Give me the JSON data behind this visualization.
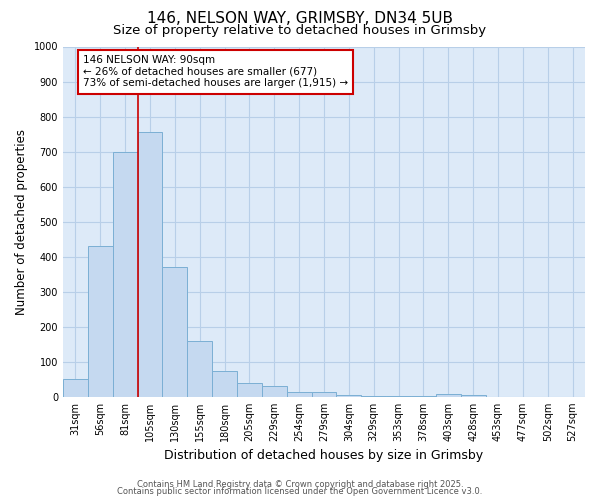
{
  "title": "146, NELSON WAY, GRIMSBY, DN34 5UB",
  "subtitle": "Size of property relative to detached houses in Grimsby",
  "xlabel": "Distribution of detached houses by size in Grimsby",
  "ylabel": "Number of detached properties",
  "categories": [
    "31sqm",
    "56sqm",
    "81sqm",
    "105sqm",
    "130sqm",
    "155sqm",
    "180sqm",
    "205sqm",
    "229sqm",
    "254sqm",
    "279sqm",
    "304sqm",
    "329sqm",
    "353sqm",
    "378sqm",
    "403sqm",
    "428sqm",
    "453sqm",
    "477sqm",
    "502sqm",
    "527sqm"
  ],
  "values": [
    50,
    430,
    700,
    755,
    370,
    160,
    75,
    38,
    30,
    15,
    15,
    5,
    3,
    2,
    1,
    7,
    4,
    0,
    0,
    0,
    0
  ],
  "bar_color": "#c5d9f0",
  "bar_edge_color": "#7bafd4",
  "red_line_index": 2,
  "annotation_line1": "146 NELSON WAY: 90sqm",
  "annotation_line2": "← 26% of detached houses are smaller (677)",
  "annotation_line3": "73% of semi-detached houses are larger (1,915) →",
  "annotation_box_facecolor": "#ffffff",
  "annotation_box_edgecolor": "#cc0000",
  "red_line_color": "#cc0000",
  "ylim": [
    0,
    1000
  ],
  "yticks": [
    0,
    100,
    200,
    300,
    400,
    500,
    600,
    700,
    800,
    900,
    1000
  ],
  "grid_color": "#b8cfe8",
  "plot_bg_color": "#ddeaf8",
  "fig_bg_color": "#ffffff",
  "footer_line1": "Contains HM Land Registry data © Crown copyright and database right 2025.",
  "footer_line2": "Contains public sector information licensed under the Open Government Licence v3.0.",
  "title_fontsize": 11,
  "subtitle_fontsize": 9.5,
  "ylabel_fontsize": 8.5,
  "xlabel_fontsize": 9,
  "tick_fontsize": 7,
  "annot_fontsize": 7.5,
  "footer_fontsize": 6
}
